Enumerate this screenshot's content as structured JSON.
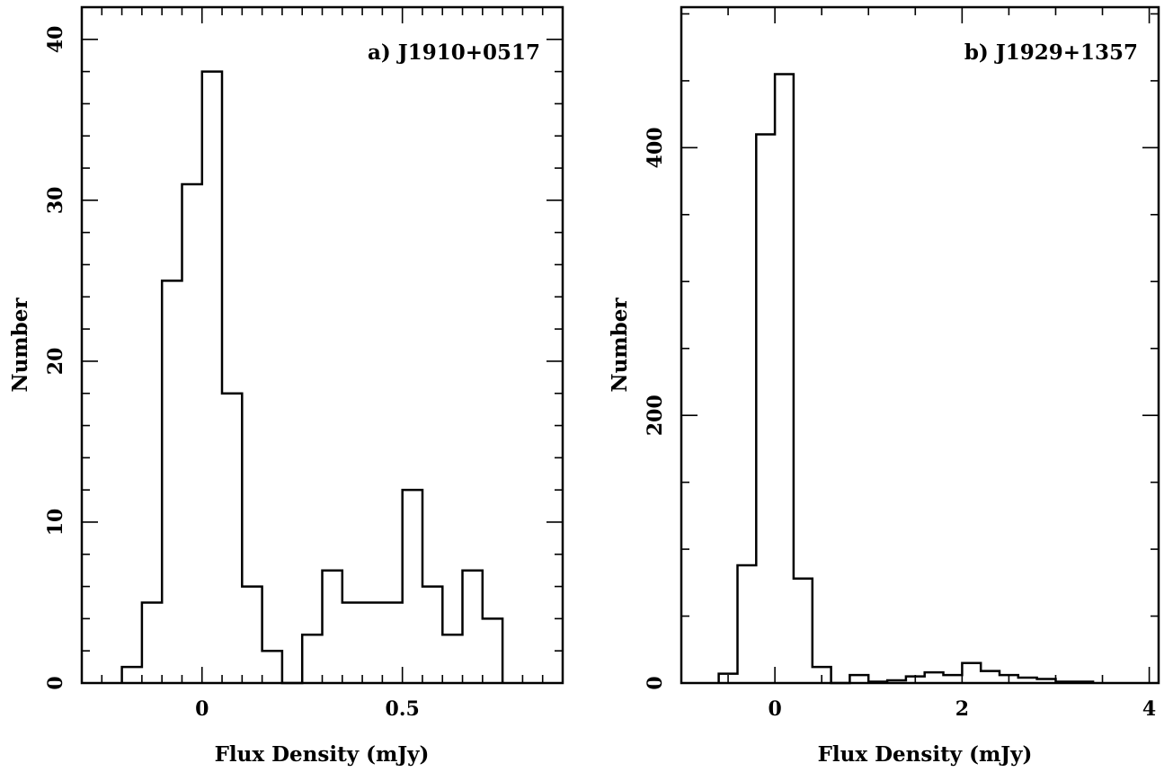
{
  "chart_data": [
    {
      "type": "bar",
      "title": "a) J1910+0517",
      "xlabel": "Flux Density (mJy)",
      "ylabel": "Number",
      "xlim": [
        -0.3,
        0.9
      ],
      "ylim": [
        0,
        42
      ],
      "xticks": [
        0,
        0.5
      ],
      "xtick_labels": [
        "0",
        "0.5"
      ],
      "yticks": [
        0,
        10,
        20,
        30,
        40
      ],
      "ytick_labels": [
        "0",
        "10",
        "20",
        "30",
        "40"
      ],
      "bin_width": 0.05,
      "bin_starts": [
        -0.2,
        -0.15,
        -0.1,
        -0.05,
        0.0,
        0.05,
        0.1,
        0.15,
        0.2,
        0.25,
        0.3,
        0.35,
        0.4,
        0.45,
        0.5,
        0.55,
        0.6,
        0.65,
        0.7
      ],
      "values": [
        1,
        5,
        25,
        31,
        38,
        18,
        6,
        2,
        0,
        3,
        7,
        5,
        5,
        5,
        12,
        6,
        3,
        7,
        4
      ],
      "grid": false
    },
    {
      "type": "bar",
      "title": "b) J1929+1357",
      "xlabel": "Flux Density (mJy)",
      "ylabel": "Number",
      "xlim": [
        -1.0,
        4.1
      ],
      "ylim": [
        0,
        505
      ],
      "xticks": [
        0,
        2,
        4
      ],
      "xtick_labels": [
        "0",
        "2",
        "4"
      ],
      "yticks": [
        0,
        200,
        400
      ],
      "ytick_labels": [
        "0",
        "200",
        "400"
      ],
      "bin_width": 0.2,
      "bin_starts": [
        -0.6,
        -0.4,
        -0.2,
        0.0,
        0.2,
        0.4,
        0.6,
        0.8,
        1.0,
        1.2,
        1.4,
        1.6,
        1.8,
        2.0,
        2.2,
        2.4,
        2.6,
        2.8,
        3.0,
        3.2
      ],
      "values": [
        7,
        88,
        410,
        455,
        78,
        12,
        0,
        6,
        1,
        2,
        5,
        8,
        6,
        15,
        9,
        6,
        4,
        3,
        1,
        1
      ],
      "grid": false
    }
  ]
}
